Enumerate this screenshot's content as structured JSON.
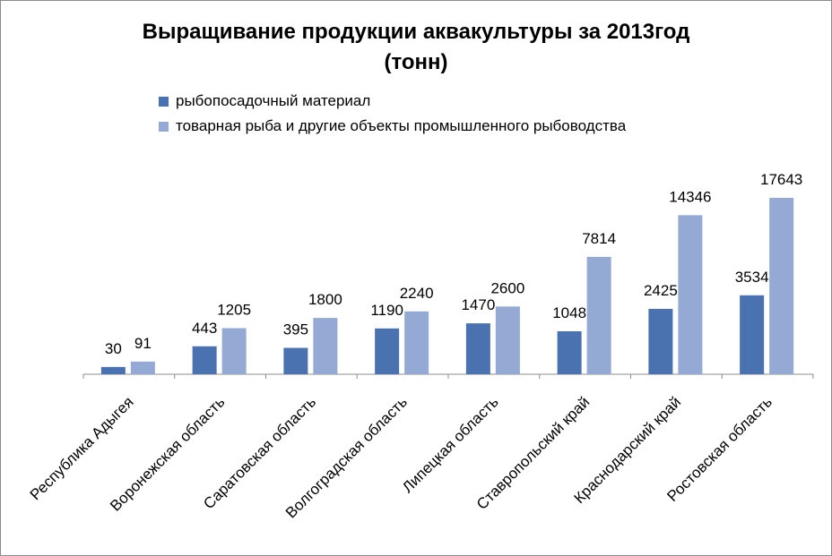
{
  "colors": {
    "series1": "#4A72B0",
    "series2": "#94A9D4",
    "axis": "#8c8c8c",
    "text": "#000000"
  },
  "chart_data": {
    "type": "bar",
    "title": "Выращивание продукции аквакультуры за 2013год",
    "subtitle": "(тонн)",
    "xlabel": "",
    "ylabel": "",
    "axis_scale": "sqrt",
    "grid": false,
    "legend_position": "top",
    "categories": [
      "Республика Адыгея",
      "Воронежская область",
      "Саратовская область",
      "Волгоградская область",
      "Липецкая область",
      "Ставропольский край",
      "Краснодарский край",
      "Ростовская область"
    ],
    "series": [
      {
        "name": "рыбопосадочный материал",
        "values": [
          30,
          443,
          395,
          1190,
          1470,
          1048,
          2425,
          3534
        ]
      },
      {
        "name": "товарная рыба и другие объекты промышленного рыбоводства",
        "values": [
          91,
          1205,
          1800,
          2240,
          2600,
          7814,
          14346,
          17643
        ]
      }
    ]
  }
}
